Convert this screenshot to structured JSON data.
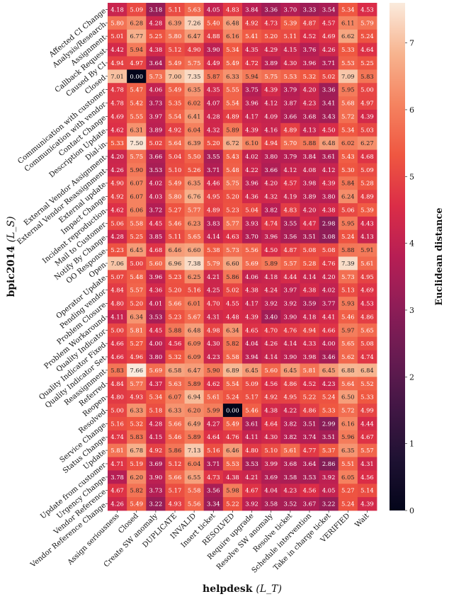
{
  "chart_data": {
    "type": "heatmap",
    "xlabel": "helpdesk",
    "xlabel_sub": "(L_T)",
    "ylabel": "bpic2014",
    "ylabel_sub": "(L_S)",
    "colorbar_label": "Euclidean distance",
    "colorbar_range": [
      0,
      7.6
    ],
    "colorbar_ticks": [
      0,
      1,
      2,
      3,
      4,
      5,
      6,
      7
    ],
    "colormap": "rocket",
    "x_categories": [
      "Assign seriousness",
      "Closed",
      "Create SW anomaly",
      "DUPLICATE",
      "INVALID",
      "Insert ticket",
      "RESOLVED",
      "Require upgrade",
      "Resolve SW anomaly",
      "Resolve ticket",
      "Schedule intervention",
      "Take in charge ticket",
      "VERIFIED",
      "Wait"
    ],
    "y_categories": [
      "Affected CI Change",
      "Analysis/Research",
      "Assignment",
      "Callback Request",
      "Caused By CI",
      "Closed",
      "Communication with customer",
      "Communication with vendor",
      "Contact Change",
      "Description Update",
      "Dial-in",
      "External Vendor Assignment",
      "External Vendor Reassignment",
      "External update",
      "Impact Change",
      "Incident reproduction",
      "Mail to Customer",
      "Notify By Change",
      "OO Response",
      "Open",
      "Operator Update",
      "Pending vendor",
      "Problem Closure",
      "Problem Workaround",
      "Quality Indicator",
      "Quality Indicator Fixed",
      "Quality Indicator Set",
      "Reassignment",
      "Referred",
      "Reopen",
      "Resolved",
      "Service Change",
      "Status Change",
      "Update",
      "Update from customer",
      "Urgency Change",
      "Vendor Reference",
      "Vendor Reference Change"
    ],
    "values": [
      [
        4.18,
        5.09,
        3.18,
        5.11,
        5.63,
        4.05,
        4.83,
        3.84,
        3.36,
        3.7,
        3.33,
        3.54,
        5.34,
        4.53
      ],
      [
        5.8,
        6.28,
        4.28,
        6.39,
        7.26,
        5.4,
        6.48,
        4.92,
        4.73,
        5.39,
        4.87,
        4.57,
        6.11,
        5.79
      ],
      [
        5.01,
        6.77,
        5.25,
        5.8,
        6.47,
        4.88,
        6.16,
        5.41,
        5.2,
        5.11,
        4.52,
        4.69,
        6.62,
        5.24
      ],
      [
        4.42,
        5.94,
        4.38,
        5.12,
        4.9,
        3.9,
        5.34,
        4.35,
        4.29,
        4.15,
        3.76,
        4.26,
        5.33,
        4.64
      ],
      [
        4.94,
        4.97,
        3.64,
        5.49,
        5.75,
        4.49,
        5.49,
        4.72,
        3.89,
        4.3,
        3.96,
        3.71,
        5.53,
        5.25
      ],
      [
        7.01,
        0.0,
        5.73,
        7.0,
        7.35,
        5.87,
        6.33,
        5.94,
        5.75,
        5.53,
        5.32,
        5.02,
        7.09,
        5.83
      ],
      [
        4.78,
        5.47,
        4.06,
        5.49,
        6.35,
        4.35,
        5.55,
        3.75,
        4.39,
        3.79,
        4.2,
        3.36,
        5.95,
        5.0
      ],
      [
        4.78,
        5.42,
        3.73,
        5.35,
        6.02,
        4.07,
        5.54,
        3.96,
        4.12,
        3.87,
        4.23,
        3.41,
        5.68,
        4.97
      ],
      [
        4.69,
        5.55,
        3.97,
        5.54,
        6.41,
        4.28,
        4.89,
        4.17,
        4.09,
        3.66,
        3.68,
        3.43,
        5.72,
        4.39
      ],
      [
        4.62,
        6.31,
        3.89,
        4.92,
        6.04,
        4.32,
        5.89,
        4.39,
        4.16,
        4.89,
        4.13,
        4.5,
        5.34,
        5.03
      ],
      [
        5.33,
        7.5,
        5.02,
        5.64,
        6.39,
        5.2,
        6.72,
        6.1,
        4.94,
        5.7,
        5.88,
        6.48,
        6.02,
        6.27
      ],
      [
        4.2,
        5.75,
        3.66,
        5.04,
        5.5,
        3.55,
        5.43,
        4.02,
        3.8,
        3.79,
        3.84,
        3.61,
        5.43,
        4.68
      ],
      [
        4.26,
        5.9,
        3.53,
        5.1,
        5.26,
        3.71,
        5.48,
        4.22,
        3.66,
        4.12,
        4.08,
        4.12,
        5.3,
        5.09
      ],
      [
        4.9,
        6.07,
        4.02,
        5.49,
        6.35,
        4.46,
        5.75,
        3.96,
        4.2,
        4.57,
        3.98,
        4.39,
        5.84,
        5.28
      ],
      [
        4.92,
        6.07,
        4.03,
        5.8,
        6.76,
        4.95,
        5.2,
        4.36,
        4.32,
        4.19,
        3.89,
        3.8,
        6.24,
        4.89
      ],
      [
        4.62,
        6.06,
        3.72,
        5.27,
        5.77,
        4.89,
        5.23,
        5.04,
        3.82,
        4.83,
        4.2,
        4.38,
        5.06,
        5.39
      ],
      [
        5.06,
        5.58,
        4.45,
        5.46,
        6.23,
        3.83,
        5.77,
        3.93,
        4.74,
        3.55,
        4.47,
        2.98,
        5.95,
        4.43
      ],
      [
        4.28,
        5.25,
        3.85,
        5.11,
        5.65,
        4.14,
        4.63,
        3.7,
        3.96,
        3.56,
        3.51,
        3.08,
        5.24,
        4.13
      ],
      [
        5.23,
        6.45,
        4.68,
        6.46,
        6.6,
        5.38,
        5.73,
        5.56,
        4.5,
        4.87,
        5.08,
        5.08,
        5.88,
        5.91
      ],
      [
        7.06,
        5.0,
        5.6,
        6.96,
        7.38,
        5.79,
        6.6,
        5.69,
        5.89,
        5.57,
        5.28,
        4.76,
        7.39,
        5.61
      ],
      [
        5.07,
        5.48,
        3.96,
        5.23,
        6.25,
        4.21,
        5.86,
        4.06,
        4.18,
        4.44,
        4.14,
        4.2,
        5.73,
        4.95
      ],
      [
        4.84,
        5.57,
        4.36,
        5.2,
        5.16,
        4.25,
        5.02,
        4.38,
        4.24,
        3.97,
        4.38,
        4.02,
        5.13,
        4.69
      ],
      [
        4.8,
        5.2,
        4.01,
        5.66,
        6.01,
        4.7,
        4.55,
        4.17,
        3.92,
        3.92,
        3.59,
        3.77,
        5.93,
        4.53
      ],
      [
        4.11,
        6.34,
        3.53,
        5.23,
        5.67,
        4.31,
        4.48,
        4.39,
        3.4,
        3.9,
        4.18,
        4.41,
        5.46,
        4.86
      ],
      [
        5.0,
        5.81,
        4.45,
        5.88,
        6.48,
        4.98,
        6.34,
        4.65,
        4.7,
        4.76,
        4.94,
        4.66,
        5.97,
        5.65
      ],
      [
        4.66,
        5.27,
        4.0,
        4.56,
        6.09,
        4.3,
        5.82,
        4.04,
        4.26,
        4.14,
        4.33,
        4.0,
        5.65,
        5.08
      ],
      [
        4.66,
        4.96,
        3.8,
        5.32,
        6.09,
        4.23,
        5.58,
        3.94,
        4.14,
        3.9,
        3.98,
        3.46,
        5.62,
        4.74
      ],
      [
        5.83,
        7.66,
        5.69,
        6.58,
        6.47,
        5.9,
        6.89,
        6.45,
        5.6,
        6.45,
        5.81,
        6.45,
        6.88,
        6.84
      ],
      [
        4.84,
        5.77,
        4.37,
        5.63,
        5.89,
        4.62,
        5.54,
        5.09,
        4.56,
        4.86,
        4.52,
        4.23,
        5.64,
        5.52
      ],
      [
        4.8,
        4.93,
        5.34,
        6.07,
        6.94,
        5.61,
        5.24,
        5.17,
        4.92,
        4.95,
        5.22,
        5.24,
        6.5,
        5.33
      ],
      [
        5.0,
        6.33,
        5.18,
        6.33,
        6.2,
        5.99,
        0.0,
        5.46,
        4.38,
        4.22,
        4.86,
        5.33,
        5.72,
        4.99
      ],
      [
        5.16,
        5.32,
        4.28,
        5.66,
        6.49,
        4.27,
        5.49,
        3.61,
        4.64,
        3.82,
        3.51,
        2.99,
        6.16,
        4.44
      ],
      [
        4.74,
        5.83,
        4.15,
        5.46,
        5.89,
        4.64,
        4.76,
        4.11,
        4.3,
        3.82,
        3.74,
        3.51,
        5.96,
        4.67
      ],
      [
        5.81,
        6.78,
        4.92,
        5.86,
        7.13,
        5.16,
        6.46,
        4.8,
        5.1,
        5.61,
        4.77,
        5.37,
        6.35,
        5.57
      ],
      [
        4.71,
        5.19,
        3.69,
        5.12,
        6.04,
        3.71,
        5.53,
        3.53,
        3.99,
        3.68,
        3.64,
        2.86,
        5.51,
        4.31
      ],
      [
        3.78,
        6.2,
        3.9,
        5.66,
        6.55,
        4.73,
        4.38,
        4.21,
        3.69,
        3.58,
        3.53,
        3.92,
        6.05,
        4.56
      ],
      [
        4.67,
        5.82,
        3.73,
        5.17,
        5.58,
        3.56,
        5.98,
        4.67,
        4.04,
        4.23,
        4.56,
        4.05,
        5.27,
        5.14
      ],
      [
        4.26,
        5.49,
        3.22,
        4.93,
        5.56,
        3.34,
        5.22,
        3.92,
        3.58,
        3.52,
        3.67,
        3.22,
        5.24,
        4.39
      ]
    ]
  }
}
